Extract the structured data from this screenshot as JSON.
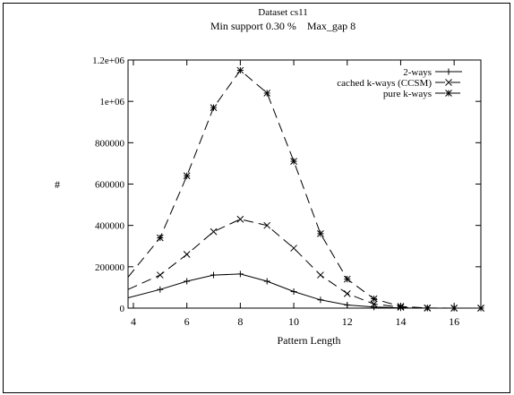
{
  "chart_data": {
    "type": "line",
    "title": "Dataset cs11",
    "subtitle": "Min support 0.30 %    Max_gap 8",
    "xlabel": "Pattern Length",
    "ylabel": "#",
    "xlim": [
      3.8,
      17
    ],
    "ylim": [
      0,
      1200000
    ],
    "x_ticks": [
      4,
      6,
      8,
      10,
      12,
      14,
      16
    ],
    "x_tick_labels": [
      "4",
      "6",
      "8",
      "10",
      "12",
      "14",
      "16"
    ],
    "y_ticks": [
      0,
      200000,
      400000,
      600000,
      800000,
      1000000,
      1200000
    ],
    "y_tick_labels": [
      "0",
      "200000",
      "400000",
      "600000",
      "800000",
      "1e+06",
      "1.2e+06"
    ],
    "grid": false,
    "legend_position": "top-right",
    "series": [
      {
        "name": "2-ways",
        "line_style": "solid",
        "marker": "plus",
        "x": [
          3.8,
          5,
          6,
          7,
          8,
          9,
          10,
          11,
          12,
          13,
          14,
          15,
          16,
          17
        ],
        "values": [
          50000,
          90000,
          130000,
          160000,
          165000,
          130000,
          80000,
          40000,
          15000,
          5000,
          1000,
          0,
          0,
          0
        ]
      },
      {
        "name": "cached k-ways (CCSM)",
        "line_style": "dashed",
        "marker": "x",
        "x": [
          3.8,
          5,
          6,
          7,
          8,
          9,
          10,
          11,
          12,
          13,
          14,
          15,
          16,
          17
        ],
        "values": [
          90000,
          160000,
          260000,
          370000,
          430000,
          400000,
          290000,
          160000,
          70000,
          20000,
          4000,
          0,
          0,
          0
        ]
      },
      {
        "name": "pure k-ways",
        "line_style": "dashed",
        "marker": "star",
        "x": [
          3.8,
          5,
          6,
          7,
          8,
          9,
          10,
          11,
          12,
          13,
          14,
          15,
          16,
          17
        ],
        "values": [
          150000,
          340000,
          640000,
          970000,
          1150000,
          1040000,
          710000,
          360000,
          140000,
          45000,
          8000,
          1000,
          0,
          0
        ]
      }
    ]
  }
}
